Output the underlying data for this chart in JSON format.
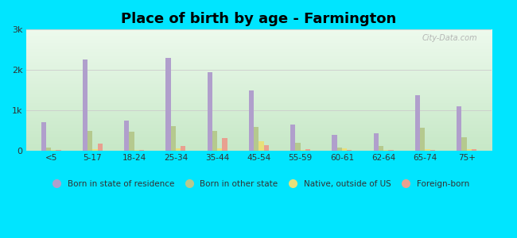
{
  "title": "Place of birth by age - Farmington",
  "categories": [
    "<5",
    "5-17",
    "18-24",
    "25-34",
    "35-44",
    "45-54",
    "55-59",
    "60-61",
    "62-64",
    "65-74",
    "75+"
  ],
  "series": {
    "Born in state of residence": [
      700,
      2250,
      750,
      2300,
      1950,
      1500,
      650,
      400,
      430,
      1380,
      1100
    ],
    "Born in other state": [
      80,
      480,
      470,
      600,
      490,
      580,
      200,
      80,
      110,
      560,
      330
    ],
    "Native, outside of US": [
      20,
      30,
      15,
      60,
      60,
      230,
      20,
      50,
      15,
      30,
      30
    ],
    "Foreign-born": [
      25,
      170,
      25,
      120,
      310,
      130,
      35,
      25,
      25,
      25,
      40
    ]
  },
  "colors": {
    "Born in state of residence": "#b09fcc",
    "Born in other state": "#b5c98e",
    "Native, outside of US": "#e8e07a",
    "Foreign-born": "#e8a090"
  },
  "ylim": [
    0,
    3000
  ],
  "yticks": [
    0,
    1000,
    2000,
    3000
  ],
  "ytick_labels": [
    "0",
    "1k",
    "2k",
    "3k"
  ],
  "outer_background": "#00e5ff",
  "bar_width": 0.12,
  "legend_fontsize": 7.5,
  "title_fontsize": 13
}
